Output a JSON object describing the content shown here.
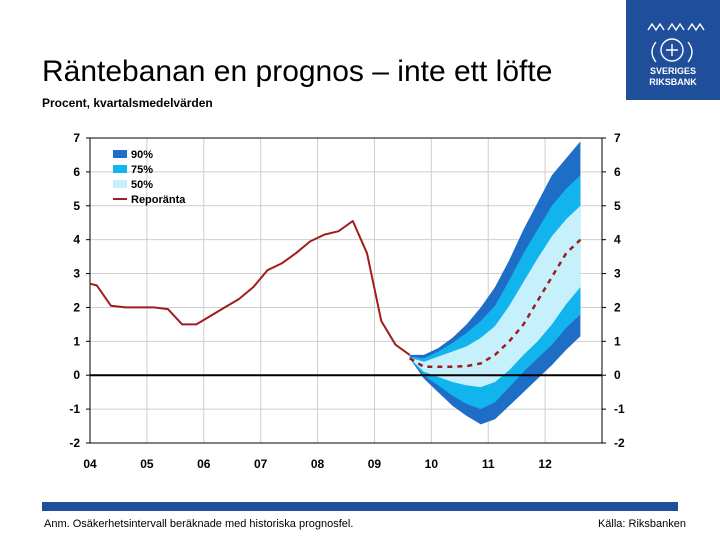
{
  "header": {
    "title": "Räntebanan en prognos – inte ett löfte",
    "subtitle": "Procent, kvartalsmedelvärden"
  },
  "logo": {
    "name": "SVERIGES RIKSBANK",
    "line1": "SVERIGES",
    "line2": "RIKSBANK",
    "color": "#1f4e9a"
  },
  "footer": {
    "note": "Anm. Osäkerhetsintervall beräknade med historiska prognosfel.",
    "source": "Källa: Riksbanken",
    "bar_color": "#1f4e9a"
  },
  "chart_data": {
    "type": "line",
    "title": "Räntebanan en prognos – inte ett löfte",
    "ylabel": "Procent, kvartalsmedelvärden",
    "ylim": [
      -2,
      7
    ],
    "yticks": [
      -2,
      -1,
      0,
      1,
      2,
      3,
      4,
      5,
      6,
      7
    ],
    "xlim": [
      2004.0,
      2013.0
    ],
    "xticks": [
      {
        "label": "04",
        "x": 2004.0
      },
      {
        "label": "05",
        "x": 2005.0
      },
      {
        "label": "06",
        "x": 2006.0
      },
      {
        "label": "07",
        "x": 2007.0
      },
      {
        "label": "08",
        "x": 2008.0
      },
      {
        "label": "09",
        "x": 2009.0
      },
      {
        "label": "10",
        "x": 2010.0
      },
      {
        "label": "11",
        "x": 2011.0
      },
      {
        "label": "12",
        "x": 2012.0
      }
    ],
    "grid": true,
    "legend_position": "top-left",
    "legend": [
      {
        "label": "90%",
        "kind": "band",
        "color": "#1e6ec8"
      },
      {
        "label": "75%",
        "kind": "band",
        "color": "#12b4ee"
      },
      {
        "label": "50%",
        "kind": "band",
        "color": "#c6f0fc"
      },
      {
        "label": "Reporänta",
        "kind": "line",
        "color": "#a11d1d"
      }
    ],
    "series": [
      {
        "name": "Reporänta",
        "color": "#a11d1d",
        "x": [
          2004.0,
          2004.12,
          2004.37,
          2004.62,
          2005.12,
          2005.37,
          2005.62,
          2005.87,
          2006.12,
          2006.37,
          2006.62,
          2006.87,
          2007.12,
          2007.37,
          2007.62,
          2007.87,
          2008.12,
          2008.37,
          2008.62,
          2008.87,
          2009.12,
          2009.37,
          2009.62
        ],
        "values": [
          2.7,
          2.65,
          2.05,
          2.0,
          2.0,
          1.95,
          1.5,
          1.5,
          1.75,
          2.0,
          2.25,
          2.6,
          3.1,
          3.3,
          3.6,
          3.95,
          4.15,
          4.25,
          4.55,
          3.6,
          1.6,
          0.9,
          0.6
        ]
      },
      {
        "name": "Prognos",
        "color": "#a11d1d",
        "dashed": true,
        "x": [
          2009.62,
          2009.87,
          2010.12,
          2010.37,
          2010.62,
          2010.87,
          2011.12,
          2011.37,
          2011.62,
          2011.87,
          2012.12,
          2012.37,
          2012.62
        ],
        "values": [
          0.5,
          0.25,
          0.25,
          0.25,
          0.27,
          0.35,
          0.6,
          1.0,
          1.5,
          2.2,
          2.9,
          3.6,
          4.0
        ]
      }
    ],
    "bands": [
      {
        "name": "90%",
        "color": "#1e6ec8",
        "x": [
          2009.62,
          2009.87,
          2010.12,
          2010.37,
          2010.62,
          2010.87,
          2011.12,
          2011.37,
          2011.62,
          2011.87,
          2012.12,
          2012.37,
          2012.62
        ],
        "upper": [
          0.6,
          0.6,
          0.8,
          1.1,
          1.5,
          2.0,
          2.6,
          3.4,
          4.3,
          5.1,
          5.9,
          6.4,
          6.9
        ],
        "lower": [
          0.5,
          -0.1,
          -0.5,
          -0.9,
          -1.2,
          -1.45,
          -1.3,
          -0.9,
          -0.5,
          -0.1,
          0.3,
          0.75,
          1.15
        ]
      },
      {
        "name": "75%",
        "color": "#12b4ee",
        "x": [
          2009.62,
          2009.87,
          2010.12,
          2010.37,
          2010.62,
          2010.87,
          2011.12,
          2011.37,
          2011.62,
          2011.87,
          2012.12,
          2012.37,
          2012.62
        ],
        "upper": [
          0.55,
          0.5,
          0.7,
          0.95,
          1.25,
          1.6,
          2.05,
          2.8,
          3.6,
          4.3,
          5.0,
          5.5,
          5.9
        ],
        "lower": [
          0.5,
          0.0,
          -0.3,
          -0.6,
          -0.85,
          -1.0,
          -0.8,
          -0.35,
          0.1,
          0.5,
          0.9,
          1.4,
          1.8
        ]
      },
      {
        "name": "50%",
        "color": "#c6f0fc",
        "x": [
          2009.62,
          2009.87,
          2010.12,
          2010.37,
          2010.62,
          2010.87,
          2011.12,
          2011.37,
          2011.62,
          2011.87,
          2012.12,
          2012.37,
          2012.62
        ],
        "upper": [
          0.52,
          0.4,
          0.55,
          0.7,
          0.85,
          1.1,
          1.45,
          2.05,
          2.75,
          3.45,
          4.1,
          4.6,
          5.0
        ],
        "lower": [
          0.5,
          0.1,
          -0.05,
          -0.2,
          -0.3,
          -0.35,
          -0.2,
          0.15,
          0.6,
          1.0,
          1.5,
          2.1,
          2.6
        ]
      }
    ]
  }
}
